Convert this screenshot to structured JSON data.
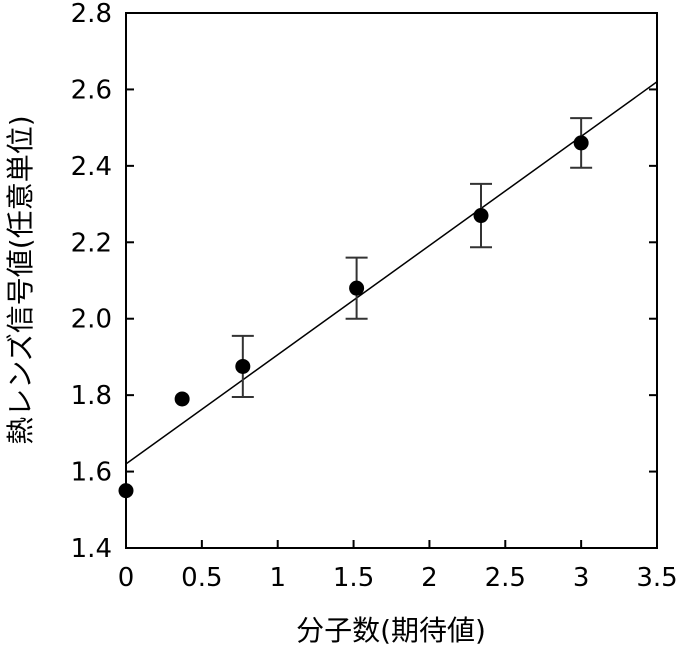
{
  "chart_data": {
    "type": "scatter",
    "xlabel": "分子数(期待値)",
    "ylabel": "熱レンズ信号値(任意単位)",
    "xlim": [
      0,
      3.5
    ],
    "ylim": [
      1.4,
      2.8
    ],
    "x_ticks": [
      0,
      0.5,
      1,
      1.5,
      2,
      2.5,
      3,
      3.5
    ],
    "x_tick_labels": [
      "0",
      "0.5",
      "1",
      "1.5",
      "2",
      "2.5",
      "3",
      "3.5"
    ],
    "y_ticks": [
      1.4,
      1.6,
      1.8,
      2.0,
      2.2,
      2.4,
      2.6,
      2.8
    ],
    "y_tick_labels": [
      "1.4",
      "1.6",
      "1.8",
      "2.0",
      "2.2",
      "2.4",
      "2.6",
      "2.8"
    ],
    "grid": false,
    "points": [
      {
        "x": 0.0,
        "y": 1.55,
        "err": null
      },
      {
        "x": 0.37,
        "y": 1.79,
        "err": null
      },
      {
        "x": 0.77,
        "y": 1.875,
        "err": 0.08
      },
      {
        "x": 1.52,
        "y": 2.08,
        "err": 0.08
      },
      {
        "x": 2.34,
        "y": 2.27,
        "err": 0.083
      },
      {
        "x": 3.0,
        "y": 2.46,
        "err": 0.065
      }
    ],
    "fit_line": {
      "x": [
        0,
        3.5
      ],
      "y": [
        1.62,
        2.62
      ]
    },
    "colors": {
      "marker": "#000000",
      "line": "#000000",
      "errorbar": "#333333"
    }
  }
}
